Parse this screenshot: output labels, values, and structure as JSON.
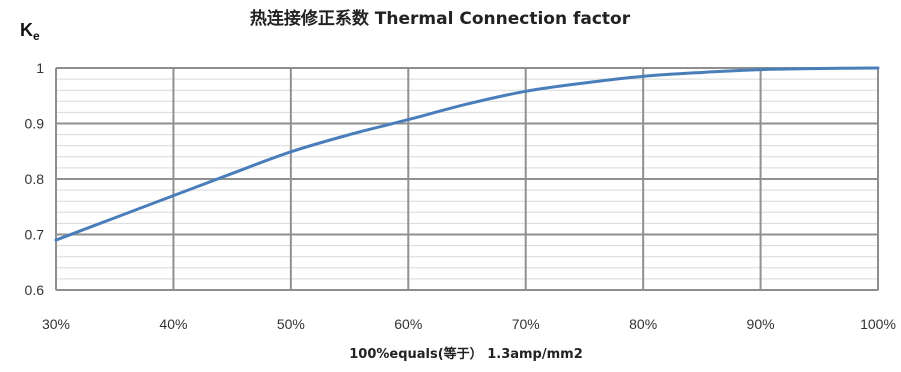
{
  "chart_data": {
    "type": "line",
    "title": "热连接修正系数 Thermal Connection factor",
    "ylabel_main": "K",
    "ylabel_sub": "e",
    "xlabel": "100%equals(等于） 1.3amp/mm2",
    "x_ticks": [
      "30%",
      "40%",
      "50%",
      "60%",
      "70%",
      "80%",
      "90%",
      "100%"
    ],
    "y_ticks": [
      "0.6",
      "0.7",
      "0.8",
      "0.9",
      "1"
    ],
    "xlim": [
      30,
      100
    ],
    "ylim": [
      0.6,
      1.0
    ],
    "y_minor_step": 0.02,
    "grid": true,
    "series_color": "#4a7ebb",
    "series": [
      {
        "x": [
          30,
          35,
          40,
          45,
          50,
          55,
          60,
          65,
          70,
          75,
          80,
          85,
          90,
          95,
          100
        ],
        "y": [
          0.69,
          0.73,
          0.77,
          0.81,
          0.849,
          0.88,
          0.907,
          0.935,
          0.958,
          0.973,
          0.985,
          0.992,
          0.997,
          0.999,
          1.0
        ]
      }
    ]
  }
}
